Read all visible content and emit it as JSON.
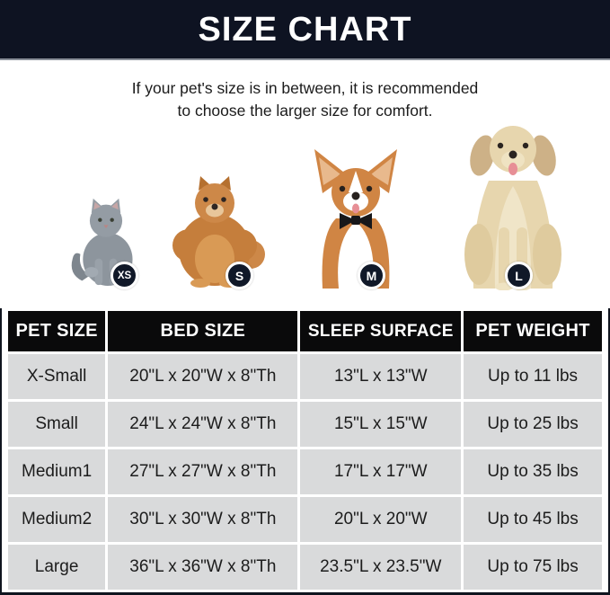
{
  "header": {
    "title": "SIZE CHART"
  },
  "subtitle": {
    "line1": "If your pet's size is in between, it is recommended",
    "line2": "to choose the larger size for comfort."
  },
  "pets": [
    {
      "name": "gray-cat",
      "badge": "XS"
    },
    {
      "name": "pomeranian",
      "badge": "S"
    },
    {
      "name": "corgi",
      "badge": "M"
    },
    {
      "name": "golden-retriever",
      "badge": "L"
    }
  ],
  "chart_data": {
    "type": "table",
    "title": "SIZE CHART",
    "columns": [
      "PET SIZE",
      "BED SIZE",
      "SLEEP SURFACE",
      "PET WEIGHT"
    ],
    "rows": [
      [
        "X-Small",
        "20\"L x 20\"W x 8\"Th",
        "13\"L x 13\"W",
        "Up to 11 lbs"
      ],
      [
        "Small",
        "24\"L x 24\"W x 8\"Th",
        "15\"L x 15\"W",
        "Up to 25 lbs"
      ],
      [
        "Medium1",
        "27\"L x 27\"W x 8\"Th",
        "17\"L x 17\"W",
        "Up to 35 lbs"
      ],
      [
        "Medium2",
        "30\"L x 30\"W x 8\"Th",
        "20\"L x 20\"W",
        "Up to 45 lbs"
      ],
      [
        "Large",
        "36\"L x 36\"W x 8\"Th",
        "23.5\"L x 23.5\"W",
        "Up to 75 lbs"
      ]
    ]
  },
  "colors": {
    "banner_bg": "#0e1322",
    "table_header_bg": "#0a0a0b",
    "row_bg": "#d9dadb",
    "badge_bg": "#101828",
    "text": "#1c1c1c"
  }
}
